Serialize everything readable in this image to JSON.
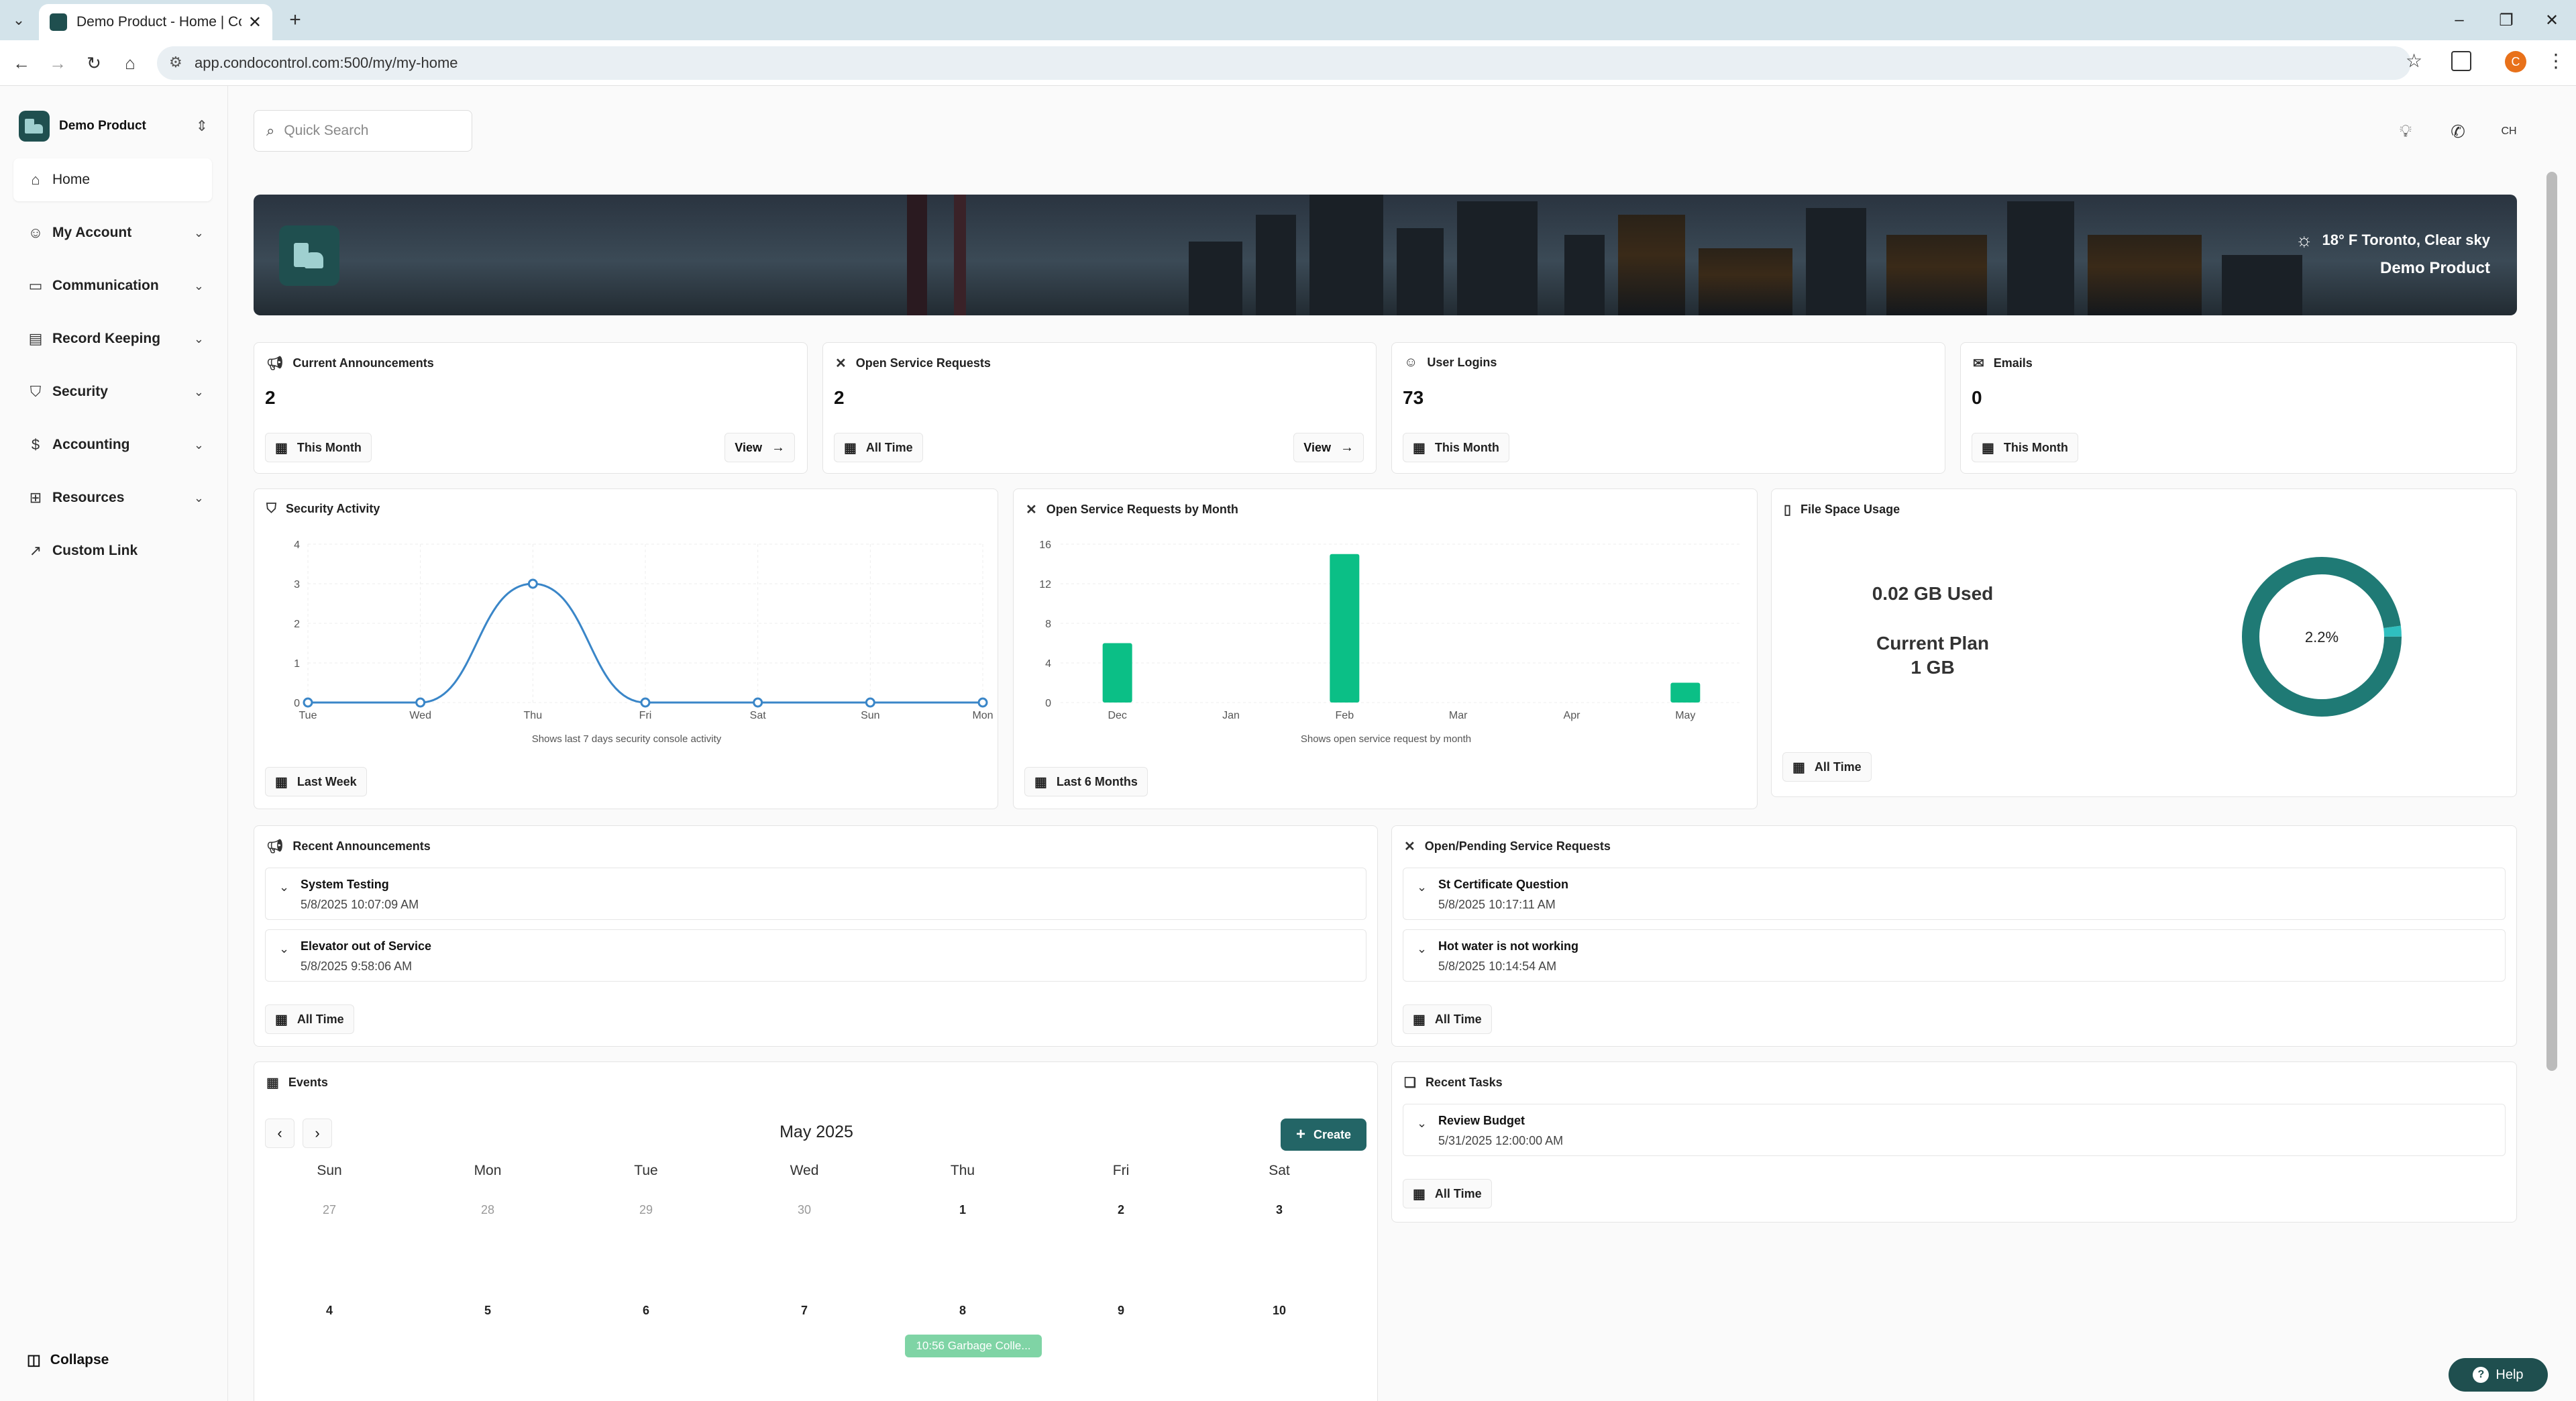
{
  "browser": {
    "tab_title": "Demo Product - Home | Condo",
    "url": "app.condocontrol.com:500/my/my-home",
    "profile_initial": "C"
  },
  "sidebar": {
    "org_name": "Demo Product",
    "items": [
      {
        "label": "Home",
        "icon": "home-icon"
      },
      {
        "label": "My Account",
        "icon": "user-icon"
      },
      {
        "label": "Communication",
        "icon": "chat-icon"
      },
      {
        "label": "Record Keeping",
        "icon": "folder-icon"
      },
      {
        "label": "Security",
        "icon": "shield-icon"
      },
      {
        "label": "Accounting",
        "icon": "dollar-icon"
      },
      {
        "label": "Resources",
        "icon": "bookmark-icon"
      },
      {
        "label": "Custom Link",
        "icon": "external-link-icon"
      }
    ],
    "collapse_label": "Collapse"
  },
  "header": {
    "search_placeholder": "Quick Search",
    "avatar_initials": "CH"
  },
  "banner": {
    "weather": "18° F  Toronto, Clear sky",
    "product": "Demo Product"
  },
  "stats": [
    {
      "title": "Current Announcements",
      "value": "2",
      "period": "This Month",
      "view": "View"
    },
    {
      "title": "Open Service Requests",
      "value": "2",
      "period": "All Time",
      "view": "View"
    },
    {
      "title": "User Logins",
      "value": "73",
      "period": "This Month"
    },
    {
      "title": "Emails",
      "value": "0",
      "period": "This Month"
    }
  ],
  "security_activity": {
    "title": "Security Activity",
    "caption": "Shows last 7 days security console activity",
    "period": "Last Week"
  },
  "service_by_month": {
    "title": "Open Service Requests by Month",
    "caption": "Shows open service request by month",
    "period": "Last 6 Months"
  },
  "file_space": {
    "title": "File Space Usage",
    "used": "0.02 GB Used",
    "plan_label": "Current Plan",
    "plan_size": "1 GB",
    "percent_label": "2.2%",
    "percent": 2.2,
    "period": "All Time"
  },
  "chart_data": [
    {
      "type": "line",
      "x": [
        "Tue",
        "Wed",
        "Thu",
        "Fri",
        "Sat",
        "Sun",
        "Mon"
      ],
      "values": [
        0,
        0,
        3,
        0,
        0,
        0,
        0
      ],
      "yticks": [
        "0",
        "1",
        "2",
        "3",
        "4"
      ],
      "ylim": [
        0,
        4
      ],
      "color": "#3a86c8"
    },
    {
      "type": "bar",
      "categories": [
        "Dec",
        "Jan",
        "Feb",
        "Mar",
        "Apr",
        "May"
      ],
      "values": [
        6,
        0,
        15,
        0,
        0,
        2
      ],
      "yticks": [
        "0",
        "4",
        "8",
        "12",
        "16"
      ],
      "ylim": [
        0,
        16
      ],
      "color": "#0bbf86"
    },
    {
      "type": "pie",
      "values": [
        2.2,
        97.8
      ],
      "colors": [
        "#2fbfbf",
        "#1f7a75"
      ]
    }
  ],
  "recent_announcements": {
    "title": "Recent Announcements",
    "items": [
      {
        "title": "System Testing",
        "date": "5/8/2025 10:07:09 AM"
      },
      {
        "title": "Elevator out of Service",
        "date": "5/8/2025 9:58:06 AM"
      }
    ],
    "period": "All Time"
  },
  "pending_requests": {
    "title": "Open/Pending Service Requests",
    "items": [
      {
        "title": "St Certificate Question",
        "date": "5/8/2025 10:17:11 AM"
      },
      {
        "title": "Hot water is not working",
        "date": "5/8/2025 10:14:54 AM"
      }
    ],
    "period": "All Time"
  },
  "events": {
    "title": "Events",
    "month": "May 2025",
    "create": "Create",
    "weekdays": [
      "Sun",
      "Mon",
      "Tue",
      "Wed",
      "Thu",
      "Fri",
      "Sat"
    ],
    "week1": [
      "27",
      "28",
      "29",
      "30",
      "1",
      "2",
      "3"
    ],
    "week2": [
      "4",
      "5",
      "6",
      "7",
      "8",
      "9",
      "10"
    ],
    "event_label": "10:56 Garbage Colle..."
  },
  "recent_tasks": {
    "title": "Recent Tasks",
    "items": [
      {
        "title": "Review Budget",
        "date": "5/31/2025 12:00:00 AM"
      }
    ],
    "period": "All Time"
  },
  "help_label": "Help"
}
